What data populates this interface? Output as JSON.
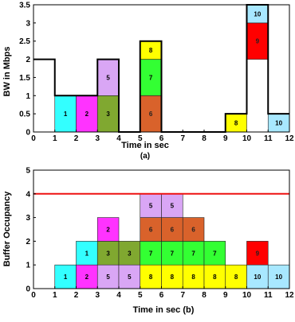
{
  "chart_data": [
    {
      "type": "bar",
      "caption": "(a)",
      "xlabel": "Time in sec",
      "ylabel": "BW in Mbps",
      "xlim": [
        0,
        12
      ],
      "ylim": [
        0,
        3.5
      ],
      "xticks": [
        0,
        1,
        2,
        3,
        4,
        5,
        6,
        7,
        8,
        9,
        10,
        11,
        12
      ],
      "yticks": [
        0,
        0.5,
        1,
        1.5,
        2,
        2.5,
        3,
        3.5
      ],
      "bandwidth_trace": {
        "x": [
          0,
          1,
          1,
          3,
          3,
          4,
          4,
          5,
          5,
          6,
          6,
          9,
          9,
          10,
          10,
          11,
          11,
          12
        ],
        "y": [
          2,
          2,
          1,
          1,
          2,
          2,
          0,
          0,
          2.5,
          2.5,
          0,
          0,
          0.5,
          0.5,
          3.5,
          3.5,
          0.5,
          0.5
        ]
      },
      "blocks": [
        {
          "label": "1",
          "x": 1,
          "y": 0,
          "h": 1,
          "color": "#33ffff"
        },
        {
          "label": "2",
          "x": 2,
          "y": 0,
          "h": 1,
          "color": "#ff33ff"
        },
        {
          "label": "3",
          "x": 3,
          "y": 0,
          "h": 1,
          "color": "#80a830"
        },
        {
          "label": "5",
          "x": 3,
          "y": 1,
          "h": 1,
          "color": "#d9a6f5"
        },
        {
          "label": "6",
          "x": 5,
          "y": 0,
          "h": 1,
          "color": "#d9622b"
        },
        {
          "label": "7",
          "x": 5,
          "y": 1,
          "h": 1,
          "color": "#33ff33"
        },
        {
          "label": "8",
          "x": 5,
          "y": 2,
          "h": 0.5,
          "color": "#ffff00"
        },
        {
          "label": "8",
          "x": 9,
          "y": 0,
          "h": 0.5,
          "color": "#ffff00"
        },
        {
          "label": "9",
          "x": 10,
          "y": 2,
          "h": 1,
          "color": "#ff0000"
        },
        {
          "label": "10",
          "x": 10,
          "y": 3,
          "h": 0.5,
          "color": "#a8e8ff"
        },
        {
          "label": "10",
          "x": 11,
          "y": 0,
          "h": 0.5,
          "color": "#a8e8ff"
        }
      ]
    },
    {
      "type": "bar",
      "caption": "(b)",
      "xlabel": "Time in sec (b)",
      "ylabel": "Buffer Occupancy",
      "xlim": [
        0,
        12
      ],
      "ylim": [
        0,
        5
      ],
      "xticks": [
        0,
        1,
        2,
        3,
        4,
        5,
        6,
        7,
        8,
        9,
        10,
        11,
        12
      ],
      "yticks": [
        0,
        1,
        2,
        3,
        4,
        5
      ],
      "threshold": {
        "y": 4,
        "color": "#ee1111"
      },
      "blocks": [
        {
          "label": "1",
          "x": 1,
          "y": 0,
          "color": "#33ffff"
        },
        {
          "label": "2",
          "x": 2,
          "y": 0,
          "color": "#ff33ff"
        },
        {
          "label": "1",
          "x": 2,
          "y": 1,
          "color": "#33ffff"
        },
        {
          "label": "5",
          "x": 3,
          "y": 0,
          "color": "#d9a6f5"
        },
        {
          "label": "3",
          "x": 3,
          "y": 1,
          "color": "#80a830"
        },
        {
          "label": "2",
          "x": 3,
          "y": 2,
          "color": "#ff33ff"
        },
        {
          "label": "5",
          "x": 4,
          "y": 0,
          "color": "#d9a6f5"
        },
        {
          "label": "3",
          "x": 4,
          "y": 1,
          "color": "#80a830"
        },
        {
          "label": "8",
          "x": 5,
          "y": 0,
          "color": "#ffff00"
        },
        {
          "label": "7",
          "x": 5,
          "y": 1,
          "color": "#33ff33"
        },
        {
          "label": "6",
          "x": 5,
          "y": 2,
          "color": "#d9622b"
        },
        {
          "label": "5",
          "x": 5,
          "y": 3,
          "color": "#d9a6f5"
        },
        {
          "label": "8",
          "x": 6,
          "y": 0,
          "color": "#ffff00"
        },
        {
          "label": "7",
          "x": 6,
          "y": 1,
          "color": "#33ff33"
        },
        {
          "label": "6",
          "x": 6,
          "y": 2,
          "color": "#d9622b"
        },
        {
          "label": "5",
          "x": 6,
          "y": 3,
          "color": "#d9a6f5"
        },
        {
          "label": "8",
          "x": 7,
          "y": 0,
          "color": "#ffff00"
        },
        {
          "label": "7",
          "x": 7,
          "y": 1,
          "color": "#33ff33"
        },
        {
          "label": "6",
          "x": 7,
          "y": 2,
          "color": "#d9622b"
        },
        {
          "label": "8",
          "x": 8,
          "y": 0,
          "color": "#ffff00"
        },
        {
          "label": "7",
          "x": 8,
          "y": 1,
          "color": "#33ff33"
        },
        {
          "label": "8",
          "x": 9,
          "y": 0,
          "color": "#ffff00"
        },
        {
          "label": "10",
          "x": 10,
          "y": 0,
          "color": "#a8e8ff"
        },
        {
          "label": "9",
          "x": 10,
          "y": 1,
          "color": "#ff0000"
        },
        {
          "label": "10",
          "x": 11,
          "y": 0,
          "color": "#a8e8ff"
        }
      ]
    }
  ]
}
